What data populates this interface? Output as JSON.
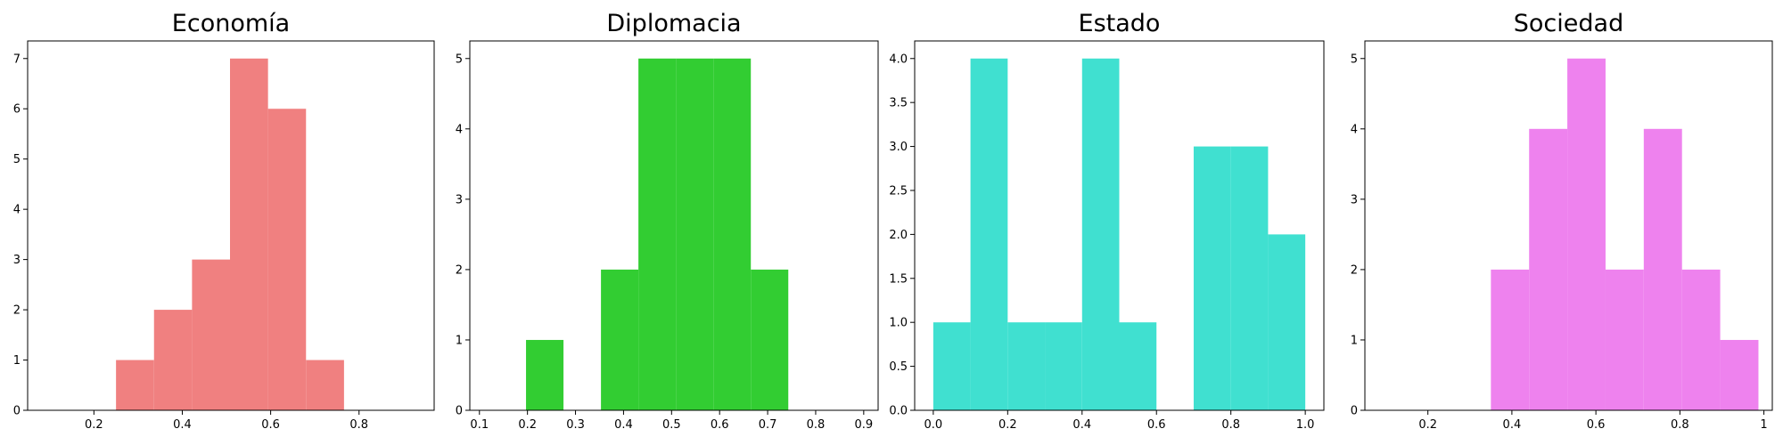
{
  "chart_data": [
    {
      "type": "bar",
      "title": "Economía",
      "color": "#f08080",
      "xlim": [
        0.05,
        0.97
      ],
      "ylim": [
        0,
        7.35
      ],
      "xticks": [
        0.2,
        0.4,
        0.6,
        0.8
      ],
      "yticks": [
        0,
        1,
        2,
        3,
        4,
        5,
        6,
        7
      ],
      "bins": [
        {
          "x0": 0.25,
          "x1": 0.336,
          "count": 1
        },
        {
          "x0": 0.336,
          "x1": 0.422,
          "count": 2
        },
        {
          "x0": 0.422,
          "x1": 0.508,
          "count": 3
        },
        {
          "x0": 0.508,
          "x1": 0.594,
          "count": 7
        },
        {
          "x0": 0.594,
          "x1": 0.68,
          "count": 6
        },
        {
          "x0": 0.68,
          "x1": 0.766,
          "count": 1
        }
      ]
    },
    {
      "type": "bar",
      "title": "Diplomacia",
      "color": "#32cd32",
      "xlim": [
        0.08,
        0.93
      ],
      "ylim": [
        0,
        5.25
      ],
      "xticks": [
        0.1,
        0.2,
        0.3,
        0.4,
        0.5,
        0.6,
        0.7,
        0.8,
        0.9
      ],
      "yticks": [
        0,
        1,
        2,
        3,
        4,
        5
      ],
      "bins": [
        {
          "x0": 0.197,
          "x1": 0.275,
          "count": 1
        },
        {
          "x0": 0.353,
          "x1": 0.431,
          "count": 2
        },
        {
          "x0": 0.431,
          "x1": 0.509,
          "count": 5
        },
        {
          "x0": 0.509,
          "x1": 0.587,
          "count": 5
        },
        {
          "x0": 0.587,
          "x1": 0.665,
          "count": 5
        },
        {
          "x0": 0.665,
          "x1": 0.743,
          "count": 2
        }
      ]
    },
    {
      "type": "bar",
      "title": "Estado",
      "color": "#40e0d0",
      "xlim": [
        -0.05,
        1.05
      ],
      "ylim": [
        0,
        4.2
      ],
      "xticks": [
        0.0,
        0.2,
        0.4,
        0.6,
        0.8,
        1.0
      ],
      "xtick_labels": [
        "0.0",
        "0.2",
        "0.4",
        "0.6",
        "0.8",
        "1.0"
      ],
      "yticks": [
        0.0,
        0.5,
        1.0,
        1.5,
        2.0,
        2.5,
        3.0,
        3.5,
        4.0
      ],
      "ytick_labels": [
        "0.0",
        "0.5",
        "1.0",
        "1.5",
        "2.0",
        "2.5",
        "3.0",
        "3.5",
        "4.0"
      ],
      "bins": [
        {
          "x0": 0.0,
          "x1": 0.1,
          "count": 1
        },
        {
          "x0": 0.1,
          "x1": 0.2,
          "count": 4
        },
        {
          "x0": 0.2,
          "x1": 0.3,
          "count": 1
        },
        {
          "x0": 0.3,
          "x1": 0.4,
          "count": 1
        },
        {
          "x0": 0.4,
          "x1": 0.5,
          "count": 4
        },
        {
          "x0": 0.5,
          "x1": 0.6,
          "count": 1
        },
        {
          "x0": 0.7,
          "x1": 0.8,
          "count": 3
        },
        {
          "x0": 0.8,
          "x1": 0.9,
          "count": 3
        },
        {
          "x0": 0.9,
          "x1": 1.0,
          "count": 2
        }
      ]
    },
    {
      "type": "bar",
      "title": "Sociedad",
      "color": "#ee82ee",
      "xlim": [
        0.05,
        1.02
      ],
      "ylim": [
        0,
        5.25
      ],
      "xticks": [
        0.2,
        0.4,
        0.6,
        0.8,
        1.0
      ],
      "yticks": [
        0,
        1,
        2,
        3,
        4,
        5
      ],
      "bins": [
        {
          "x0": 0.35,
          "x1": 0.441,
          "count": 2
        },
        {
          "x0": 0.441,
          "x1": 0.532,
          "count": 4
        },
        {
          "x0": 0.532,
          "x1": 0.623,
          "count": 5
        },
        {
          "x0": 0.623,
          "x1": 0.714,
          "count": 2
        },
        {
          "x0": 0.714,
          "x1": 0.805,
          "count": 4
        },
        {
          "x0": 0.805,
          "x1": 0.896,
          "count": 2
        },
        {
          "x0": 0.896,
          "x1": 0.987,
          "count": 1
        }
      ]
    }
  ]
}
